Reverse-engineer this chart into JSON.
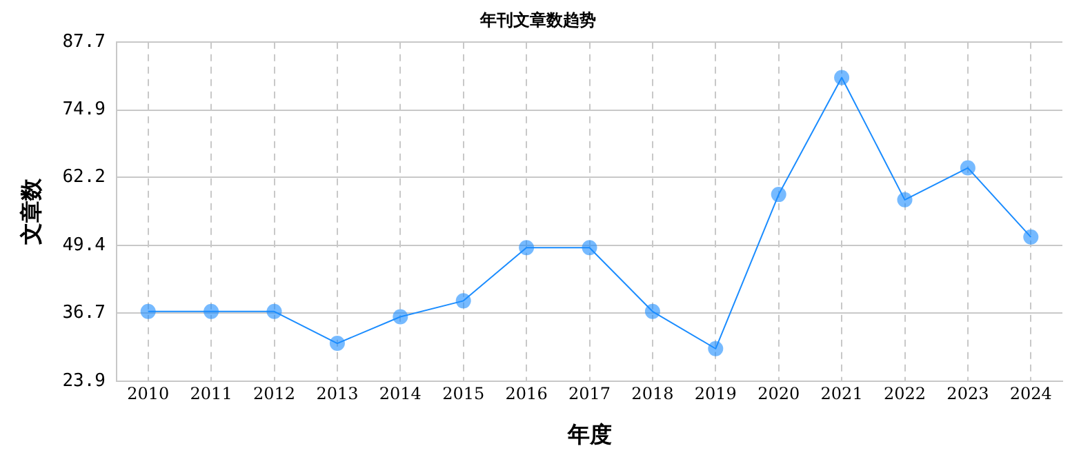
{
  "chart_data": {
    "type": "line",
    "title": "年刊文章数趋势",
    "xlabel": "年度",
    "ylabel": "文章数",
    "categories": [
      "2010",
      "2011",
      "2012",
      "2013",
      "2014",
      "2015",
      "2016",
      "2017",
      "2018",
      "2019",
      "2020",
      "2021",
      "2022",
      "2023",
      "2024"
    ],
    "series": [
      {
        "color": "#1a8cff",
        "values": [
          37,
          37,
          37,
          31,
          36,
          39,
          49,
          49,
          37,
          30,
          59,
          81,
          58,
          64,
          51
        ]
      }
    ],
    "ylim": [
      23.9,
      87.7
    ],
    "yticks": [
      23.9,
      36.7,
      49.4,
      62.2,
      74.9,
      87.7
    ],
    "grid": true,
    "legend": false,
    "marker": "circle",
    "line_style": "solid"
  }
}
